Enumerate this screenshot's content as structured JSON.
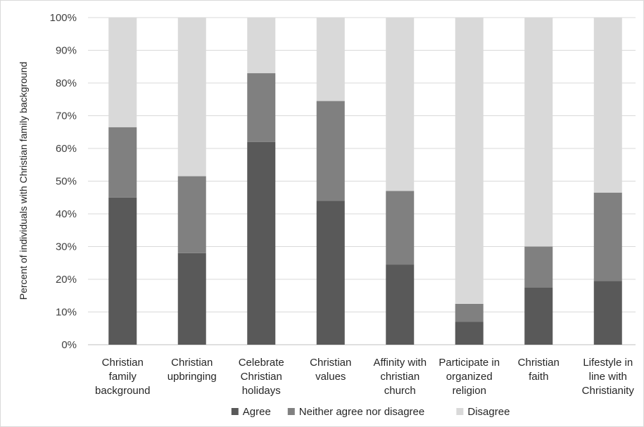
{
  "chart_data": {
    "type": "bar",
    "stacked": true,
    "percent_stacked": true,
    "categories": [
      [
        "Christian",
        "family",
        "background"
      ],
      [
        "Christian",
        "upbringing"
      ],
      [
        "Celebrate",
        "Christian",
        "holidays"
      ],
      [
        "Christian",
        "values"
      ],
      [
        "Affinity with",
        "christian",
        "church"
      ],
      [
        "Participate in",
        "organized",
        "religion"
      ],
      [
        "Christian",
        "faith"
      ],
      [
        "Lifestyle in",
        "line with",
        "Christianity"
      ]
    ],
    "series": [
      {
        "name": "Agree",
        "color": "#595959",
        "values": [
          45,
          28,
          62,
          44,
          24.5,
          7,
          17.5,
          19.5
        ]
      },
      {
        "name": "Neither agree nor disagree",
        "color": "#808080",
        "values": [
          21.5,
          23.5,
          21,
          30.5,
          22.5,
          5.5,
          12.5,
          27
        ]
      },
      {
        "name": "Disagree",
        "color": "#d9d9d9",
        "values": [
          33.5,
          48.5,
          17,
          25.5,
          53,
          87.5,
          70,
          53.5
        ]
      }
    ],
    "ylabel": "Percent of individuals with Christian family background",
    "xlabel": "",
    "ylim": [
      0,
      100
    ],
    "yticks": [
      "0%",
      "10%",
      "20%",
      "30%",
      "40%",
      "50%",
      "60%",
      "70%",
      "80%",
      "90%",
      "100%"
    ],
    "grid": true,
    "legend_position": "bottom"
  }
}
